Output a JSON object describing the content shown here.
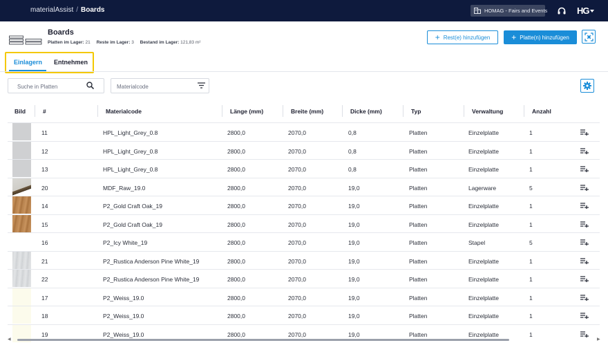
{
  "topbar": {
    "app_name": "materialAssist",
    "separator": "/",
    "page": "Boards",
    "org_label": "HOMAG - Fairs and Events",
    "brand": "HG"
  },
  "header": {
    "title": "Boards",
    "stats": [
      {
        "label": "Platten im Lager:",
        "value": "21"
      },
      {
        "label": "Reste im Lager:",
        "value": "3"
      },
      {
        "label": "Bestand im Lager:",
        "value": "121,83 m²"
      }
    ],
    "add_rest_label": "Rest(e) hinzufügen",
    "add_board_label": "Platte(n) hinzufügen"
  },
  "tabs": [
    {
      "label": "Einlagern",
      "active": true
    },
    {
      "label": "Entnehmen",
      "active": false
    }
  ],
  "filters": {
    "search_placeholder": "Suche in Platten",
    "materialcode_placeholder": "Materialcode"
  },
  "table": {
    "columns": [
      "Bild",
      "#",
      "Materialcode",
      "Länge (mm)",
      "Breite (mm)",
      "Dicke (mm)",
      "Typ",
      "Verwaltung",
      "Anzahl"
    ],
    "rows": [
      {
        "thumb": "light-grey",
        "id": "11",
        "code": "HPL_Light_Grey_0.8",
        "length": "2800,0",
        "width": "2070,0",
        "thickness": "0,8",
        "type": "Platten",
        "mgmt": "Einzelplatte",
        "count": "1"
      },
      {
        "thumb": "light-grey",
        "id": "12",
        "code": "HPL_Light_Grey_0.8",
        "length": "2800,0",
        "width": "2070,0",
        "thickness": "0,8",
        "type": "Platten",
        "mgmt": "Einzelplatte",
        "count": "1"
      },
      {
        "thumb": "light-grey",
        "id": "13",
        "code": "HPL_Light_Grey_0.8",
        "length": "2800,0",
        "width": "2070,0",
        "thickness": "0,8",
        "type": "Platten",
        "mgmt": "Einzelplatte",
        "count": "1"
      },
      {
        "thumb": "mdf",
        "id": "20",
        "code": "MDF_Raw_19.0",
        "length": "2800,0",
        "width": "2070,0",
        "thickness": "19,0",
        "type": "Platten",
        "mgmt": "Lagerware",
        "count": "5"
      },
      {
        "thumb": "oak",
        "id": "14",
        "code": "P2_Gold Craft Oak_19",
        "length": "2800,0",
        "width": "2070,0",
        "thickness": "19,0",
        "type": "Platten",
        "mgmt": "Einzelplatte",
        "count": "1"
      },
      {
        "thumb": "oak",
        "id": "15",
        "code": "P2_Gold Craft Oak_19",
        "length": "2800,0",
        "width": "2070,0",
        "thickness": "19,0",
        "type": "Platten",
        "mgmt": "Einzelplatte",
        "count": "1"
      },
      {
        "thumb": "white",
        "id": "16",
        "code": "P2_Icy White_19",
        "length": "2800,0",
        "width": "2070,0",
        "thickness": "19,0",
        "type": "Platten",
        "mgmt": "Stapel",
        "count": "5"
      },
      {
        "thumb": "pine-white",
        "id": "21",
        "code": "P2_Rustica Anderson Pine White_19",
        "length": "2800,0",
        "width": "2070,0",
        "thickness": "19,0",
        "type": "Platten",
        "mgmt": "Einzelplatte",
        "count": "1"
      },
      {
        "thumb": "pine-white",
        "id": "22",
        "code": "P2_Rustica Anderson Pine White_19",
        "length": "2800,0",
        "width": "2070,0",
        "thickness": "19,0",
        "type": "Platten",
        "mgmt": "Einzelplatte",
        "count": "1"
      },
      {
        "thumb": "cream",
        "id": "17",
        "code": "P2_Weiss_19.0",
        "length": "2800,0",
        "width": "2070,0",
        "thickness": "19,0",
        "type": "Platten",
        "mgmt": "Einzelplatte",
        "count": "1"
      },
      {
        "thumb": "cream",
        "id": "18",
        "code": "P2_Weiss_19.0",
        "length": "2800,0",
        "width": "2070,0",
        "thickness": "19,0",
        "type": "Platten",
        "mgmt": "Einzelplatte",
        "count": "1"
      },
      {
        "thumb": "cream",
        "id": "19",
        "code": "P2_Weiss_19.0",
        "length": "2800,0",
        "width": "2070,0",
        "thickness": "19,0",
        "type": "Platten",
        "mgmt": "Einzelplatte",
        "count": "1"
      }
    ]
  },
  "colors": {
    "topbar": "#0e1a3d",
    "accent": "#1a8dd8",
    "highlight": "#f4c800"
  },
  "icons": [
    "building-icon",
    "headset-icon",
    "brand-logo",
    "boards-stack-icon",
    "plus-icon",
    "scan-icon",
    "search-icon",
    "filter-icon",
    "gear-icon",
    "playlist-add-icon"
  ]
}
